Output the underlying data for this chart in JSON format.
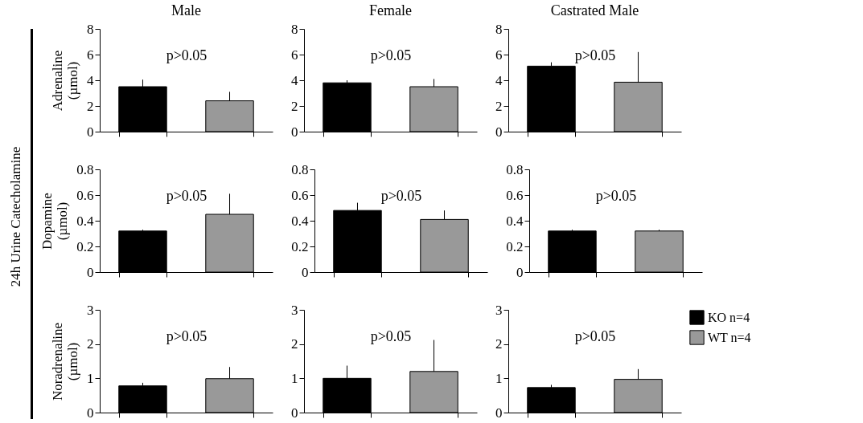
{
  "chart_data": [
    {
      "type": "bar",
      "title": "Male",
      "ylabel": "Adrenaline (µmol)",
      "categories": [
        null
      ],
      "ylim": [
        0,
        8
      ],
      "yticks": [
        0,
        2,
        4,
        6,
        8
      ],
      "grid": false,
      "tick_labels": "y",
      "annotations": [
        "p>0.05",
        "24h Urine Catecholamine"
      ],
      "series": [
        {
          "color": "#000000",
          "values": [
            3.5
          ],
          "errors": [
            [
              3.5,
              4.05
            ]
          ]
        },
        {
          "color": "#999999",
          "values": [
            2.4
          ],
          "errors": [
            [
              2.4,
              3.1
            ]
          ]
        }
      ]
    },
    {
      "type": "bar",
      "title": "Female",
      "categories": [
        null
      ],
      "ylim": [
        0,
        8
      ],
      "yticks": [
        0,
        2,
        4,
        6,
        8
      ],
      "grid": false,
      "tick_labels": "y",
      "annotations": [
        "p>0.05"
      ],
      "series": [
        {
          "color": "#000000",
          "values": [
            3.8
          ],
          "errors": [
            [
              3.8,
              4.0
            ]
          ]
        },
        {
          "color": "#999999",
          "values": [
            3.5
          ],
          "errors": [
            [
              3.5,
              4.1
            ]
          ]
        }
      ]
    },
    {
      "type": "bar",
      "title": "Castrated Male",
      "categories": [
        null
      ],
      "ylim": [
        0,
        8
      ],
      "yticks": [
        0,
        2,
        4,
        6,
        8
      ],
      "grid": false,
      "tick_labels": "y",
      "annotations": [
        "p>0.05"
      ],
      "series": [
        {
          "color": "#000000",
          "values": [
            5.1
          ],
          "errors": [
            [
              5.1,
              5.4
            ]
          ]
        },
        {
          "color": "#999999",
          "values": [
            3.85
          ],
          "errors": [
            [
              3.85,
              6.2
            ]
          ]
        }
      ]
    },
    {
      "type": "bar",
      "ylabel": "Dopamine (µmol)",
      "categories": [
        null
      ],
      "ylim": [
        0,
        0.8
      ],
      "yticks": [
        0,
        0.2,
        0.4,
        0.6,
        0.8
      ],
      "grid": false,
      "tick_labels": "y",
      "annotations": [
        "p>0.05"
      ],
      "series": [
        {
          "color": "#000000",
          "values": [
            0.32
          ],
          "errors": [
            [
              0.32,
              0.33
            ]
          ]
        },
        {
          "color": "#999999",
          "values": [
            0.45
          ],
          "errors": [
            [
              0.45,
              0.61
            ]
          ]
        }
      ]
    },
    {
      "type": "bar",
      "categories": [
        null
      ],
      "ylim": [
        0,
        0.8
      ],
      "yticks": [
        0,
        0.2,
        0.4,
        0.6,
        0.8
      ],
      "grid": false,
      "tick_labels": "y",
      "annotations": [
        "p>0.05"
      ],
      "series": [
        {
          "color": "#000000",
          "values": [
            0.48
          ],
          "errors": [
            [
              0.48,
              0.54
            ]
          ]
        },
        {
          "color": "#999999",
          "values": [
            0.41
          ],
          "errors": [
            [
              0.41,
              0.48
            ]
          ]
        }
      ]
    },
    {
      "type": "bar",
      "categories": [
        null
      ],
      "ylim": [
        0,
        0.8
      ],
      "yticks": [
        0,
        0.2,
        0.4,
        0.6,
        0.8
      ],
      "grid": false,
      "tick_labels": "y",
      "annotations": [
        "p>0.05"
      ],
      "series": [
        {
          "color": "#000000",
          "values": [
            0.32
          ],
          "errors": [
            [
              0.32,
              0.33
            ]
          ]
        },
        {
          "color": "#999999",
          "values": [
            0.32
          ],
          "errors": [
            [
              0.32,
              0.33
            ]
          ]
        }
      ]
    },
    {
      "type": "bar",
      "ylabel": "Noradrenaline (µmol)",
      "categories": [
        null
      ],
      "ylim": [
        0,
        3
      ],
      "yticks": [
        0,
        1,
        2,
        3
      ],
      "grid": false,
      "tick_labels": "y",
      "annotations": [
        "p>0.05"
      ],
      "series": [
        {
          "color": "#000000",
          "values": [
            0.78
          ],
          "errors": [
            [
              0.78,
              0.87
            ]
          ]
        },
        {
          "color": "#999999",
          "values": [
            0.99
          ],
          "errors": [
            [
              0.99,
              1.33
            ]
          ]
        }
      ]
    },
    {
      "type": "bar",
      "categories": [
        null
      ],
      "ylim": [
        0,
        3
      ],
      "yticks": [
        0,
        1,
        2,
        3
      ],
      "grid": false,
      "tick_labels": "y",
      "annotations": [
        "p>0.05"
      ],
      "series": [
        {
          "color": "#000000",
          "values": [
            1.0
          ],
          "errors": [
            [
              1.0,
              1.37
            ]
          ]
        },
        {
          "color": "#999999",
          "values": [
            1.2
          ],
          "errors": [
            [
              1.2,
              2.12
            ]
          ]
        }
      ]
    },
    {
      "type": "bar",
      "categories": [
        null
      ],
      "ylim": [
        0,
        3
      ],
      "yticks": [
        0,
        1,
        2,
        3
      ],
      "grid": false,
      "tick_labels": "y",
      "legend": "right",
      "annotations": [
        "p>0.05"
      ],
      "series": [
        {
          "name": "KO n=4",
          "color": "#000000",
          "values": [
            0.73
          ],
          "errors": [
            [
              0.73,
              0.81
            ]
          ]
        },
        {
          "name": "WT n=4",
          "color": "#999999",
          "values": [
            0.97
          ],
          "errors": [
            [
              0.97,
              1.27
            ]
          ]
        }
      ]
    }
  ]
}
